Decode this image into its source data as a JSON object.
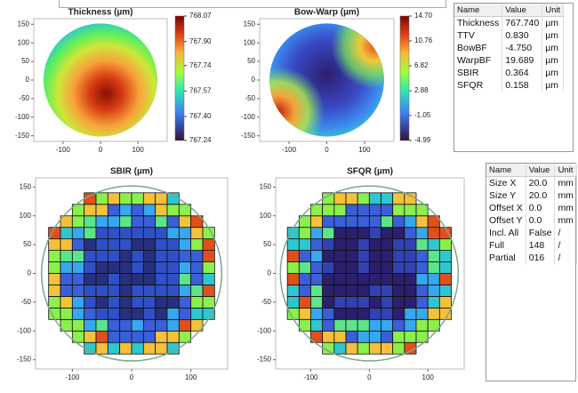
{
  "chart_data": [
    {
      "type": "heatmap",
      "title": "Thickness (µm)",
      "xlim": [
        -178,
        178
      ],
      "ylim": [
        -165,
        165
      ],
      "xticks": [
        -100,
        0,
        100
      ],
      "yticks": [
        150,
        100,
        50,
        0,
        -50,
        -100,
        -150
      ],
      "colorbar_ticks": [
        768.07,
        {
          "value": 767.9,
          "label": "767.90"
        },
        767.74,
        767.57,
        {
          "value": 767.4,
          "label": "767.40"
        },
        767.24
      ]
    },
    {
      "type": "heatmap",
      "title": "Bow-Warp (µm)",
      "xlim": [
        -178,
        178
      ],
      "ylim": [
        -165,
        165
      ],
      "xticks": [
        -100,
        0,
        100
      ],
      "yticks": [
        150,
        100,
        50,
        0,
        -50,
        -100,
        -150
      ],
      "colorbar_ticks": [
        {
          "value": 14.7,
          "label": "14.70"
        },
        10.76,
        6.82,
        2.88,
        -1.05,
        -4.99
      ]
    },
    {
      "type": "sitemap",
      "title": "SBIR (µm)",
      "xlim": [
        -162,
        162
      ],
      "ylim": [
        -166,
        166
      ],
      "xticks": [
        -100,
        0,
        100
      ],
      "yticks": [
        150,
        100,
        50,
        0,
        -50,
        -100,
        -150
      ]
    },
    {
      "type": "sitemap",
      "title": "SFQR (µm)",
      "xlim": [
        -160,
        162
      ],
      "ylim": [
        -166,
        166
      ],
      "xticks": [
        -100,
        0,
        100
      ],
      "yticks": [
        150,
        100,
        50,
        0,
        -50,
        -100,
        -150
      ]
    }
  ],
  "tables": [
    {
      "header": [
        "Name",
        "Value",
        "Unit"
      ],
      "rows": [
        [
          "Thickness",
          "767.740",
          "µm"
        ],
        [
          "TTV",
          "0.830",
          "µm"
        ],
        [
          "BowBF",
          "-4.750",
          "µm"
        ],
        [
          "WarpBF",
          "19.689",
          "µm"
        ],
        [
          "SBIR",
          "0.364",
          "µm"
        ],
        [
          "SFQR",
          "0.158",
          "µm"
        ]
      ]
    },
    {
      "header": [
        "Name",
        "Value",
        "Unit"
      ],
      "rows": [
        [
          "Size X",
          "20.0",
          "mm"
        ],
        [
          "Size Y",
          "20.0",
          "mm"
        ],
        [
          "Offset X",
          "0.0",
          "mm"
        ],
        [
          "Offset Y",
          "0.0",
          "mm"
        ],
        [
          "Incl. All",
          "False",
          "/"
        ],
        [
          "Full",
          "148",
          "/"
        ],
        [
          "Partial",
          "016",
          "/"
        ]
      ]
    }
  ]
}
